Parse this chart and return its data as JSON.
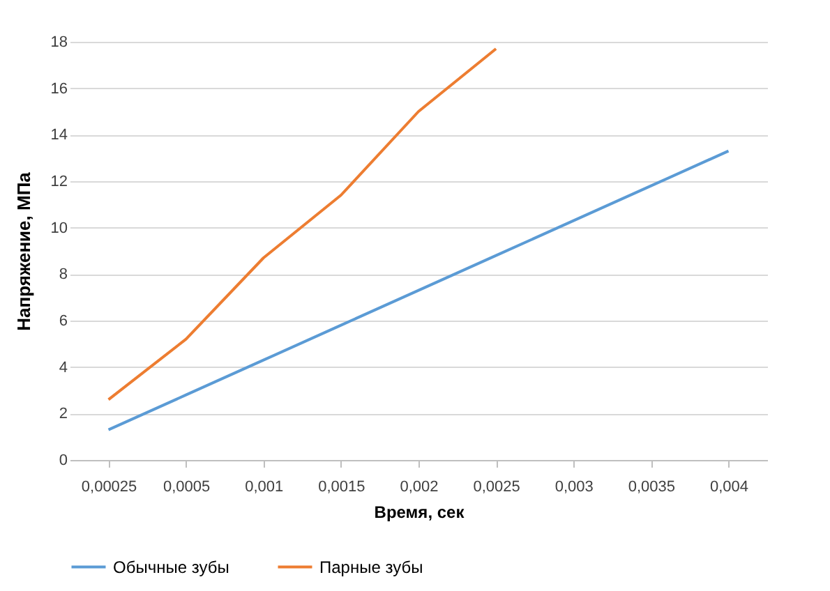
{
  "chart_data": {
    "type": "line",
    "xlabel": "Время, сек",
    "ylabel": "Напряжение, МПа",
    "categories": [
      "0,00025",
      "0,0005",
      "0,001",
      "0,0015",
      "0,002",
      "0,0025",
      "0,003",
      "0,0035",
      "0,004"
    ],
    "series": [
      {
        "name": "Обычные зубы",
        "color": "#5b9bd5",
        "values": [
          1.3,
          2.8,
          4.3,
          5.8,
          7.3,
          8.8,
          10.3,
          11.8,
          13.3
        ]
      },
      {
        "name": "Парные зубы",
        "color": "#ed7d31",
        "values": [
          2.6,
          5.2,
          8.7,
          11.4,
          15.0,
          17.7,
          null,
          null,
          null
        ]
      }
    ],
    "ylim": [
      0,
      18
    ],
    "yticks": [
      0,
      2,
      4,
      6,
      8,
      10,
      12,
      14,
      16,
      18
    ],
    "grid": "y",
    "legend": "bottom",
    "marker": "none",
    "line_style": "solid"
  }
}
